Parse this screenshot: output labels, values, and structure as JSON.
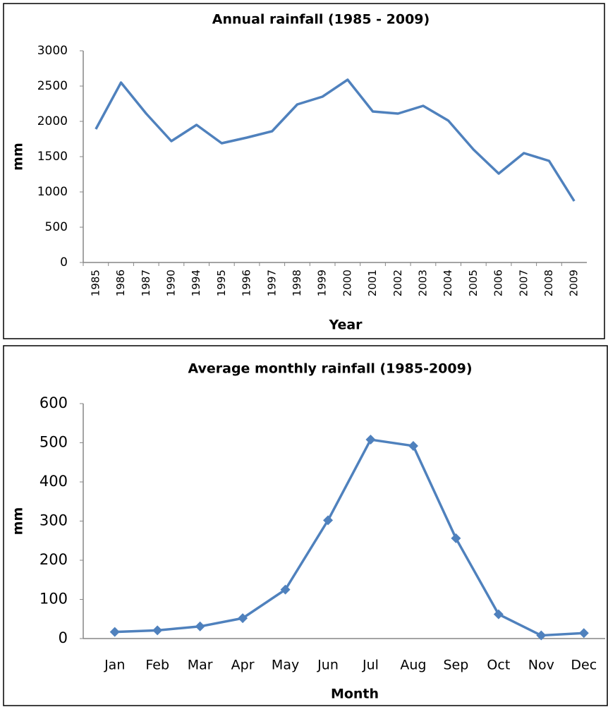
{
  "chart_data": [
    {
      "type": "line",
      "title": "Annual rainfall (1985 - 2009)",
      "x_label": "Year",
      "y_label": "mm",
      "categories": [
        "1985",
        "1986",
        "1987",
        "1990",
        "1994",
        "1995",
        "1996",
        "1997",
        "1998",
        "1999",
        "2000",
        "2001",
        "2002",
        "2003",
        "2004",
        "2005",
        "2006",
        "2007",
        "2008",
        "2009"
      ],
      "series": [
        {
          "name": "Annual rainfall",
          "color": "#4f81bd",
          "values": [
            1890,
            2550,
            2110,
            1720,
            1950,
            1690,
            1770,
            1860,
            2240,
            2350,
            2590,
            2140,
            2110,
            2220,
            2010,
            1600,
            1260,
            1550,
            1440,
            870
          ]
        }
      ],
      "ylim": [
        0,
        3000
      ],
      "yticks": [
        0,
        500,
        1000,
        1500,
        2000,
        2500,
        3000
      ],
      "grid": false,
      "legend": false,
      "marker": "none"
    },
    {
      "type": "line",
      "title": "Average monthly rainfall (1985-2009)",
      "x_label": "Month",
      "y_label": "mm",
      "categories": [
        "Jan",
        "Feb",
        "Mar",
        "Apr",
        "May",
        "Jun",
        "Jul",
        "Aug",
        "Sep",
        "Oct",
        "Nov",
        "Dec"
      ],
      "series": [
        {
          "name": "Average monthly rainfall",
          "color": "#4f81bd",
          "values": [
            17,
            21,
            31,
            52,
            125,
            302,
            508,
            492,
            256,
            62,
            8,
            14
          ]
        }
      ],
      "ylim": [
        0,
        600
      ],
      "yticks": [
        0,
        100,
        200,
        300,
        400,
        500,
        600
      ],
      "grid": false,
      "legend": false,
      "marker": "diamond"
    }
  ]
}
